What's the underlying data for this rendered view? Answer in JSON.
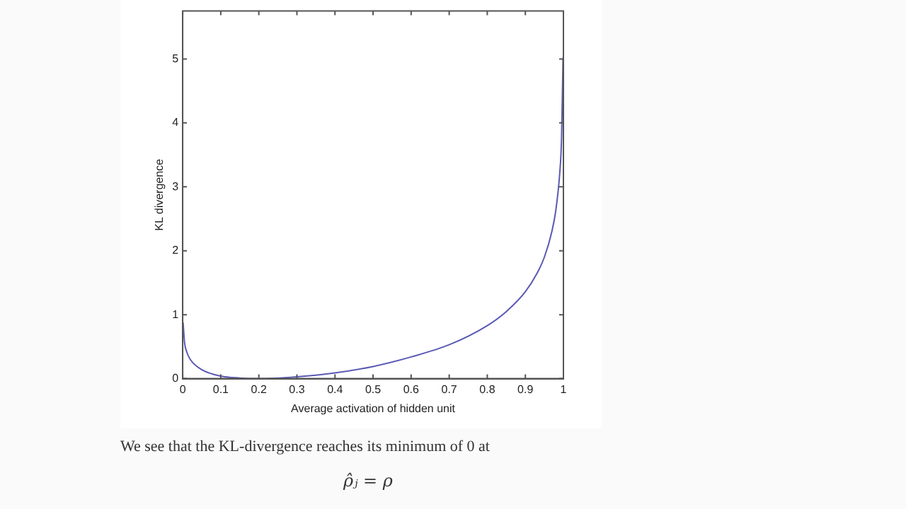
{
  "chart_data": {
    "type": "line",
    "xlabel": "Average activation of hidden unit",
    "ylabel": "KL divergence",
    "x": [
      0.001,
      0.005,
      0.01,
      0.02,
      0.05,
      0.1,
      0.15,
      0.2,
      0.3,
      0.4,
      0.5,
      0.6,
      0.7,
      0.8,
      0.85,
      0.9,
      0.93,
      0.95,
      0.97,
      0.98,
      0.99,
      0.995,
      0.999
    ],
    "series": [
      {
        "color": "#5a5ab4",
        "values": [
          0.88,
          0.56,
          0.43,
          0.3,
          0.14,
          0.04,
          0.01,
          0,
          0.03,
          0.09,
          0.19,
          0.34,
          0.53,
          0.83,
          1.05,
          1.36,
          1.64,
          1.9,
          2.31,
          2.63,
          3.19,
          3.74,
          5.02
        ]
      }
    ],
    "xlim": [
      0,
      1
    ],
    "xticks": [
      0,
      0.1,
      0.2,
      0.3,
      0.4,
      0.5,
      0.6,
      0.7,
      0.8,
      0.9,
      1
    ],
    "ylim": [
      0,
      5.75
    ],
    "yticks": [
      0,
      1,
      2,
      3,
      4,
      5
    ],
    "grid": false,
    "legend": false,
    "marker": "none",
    "line_style": "solid",
    "annotations": [
      "We see that the KL-divergence reaches its minimum of 0 at",
      "ρ̂ⱼ = ρ"
    ]
  }
}
